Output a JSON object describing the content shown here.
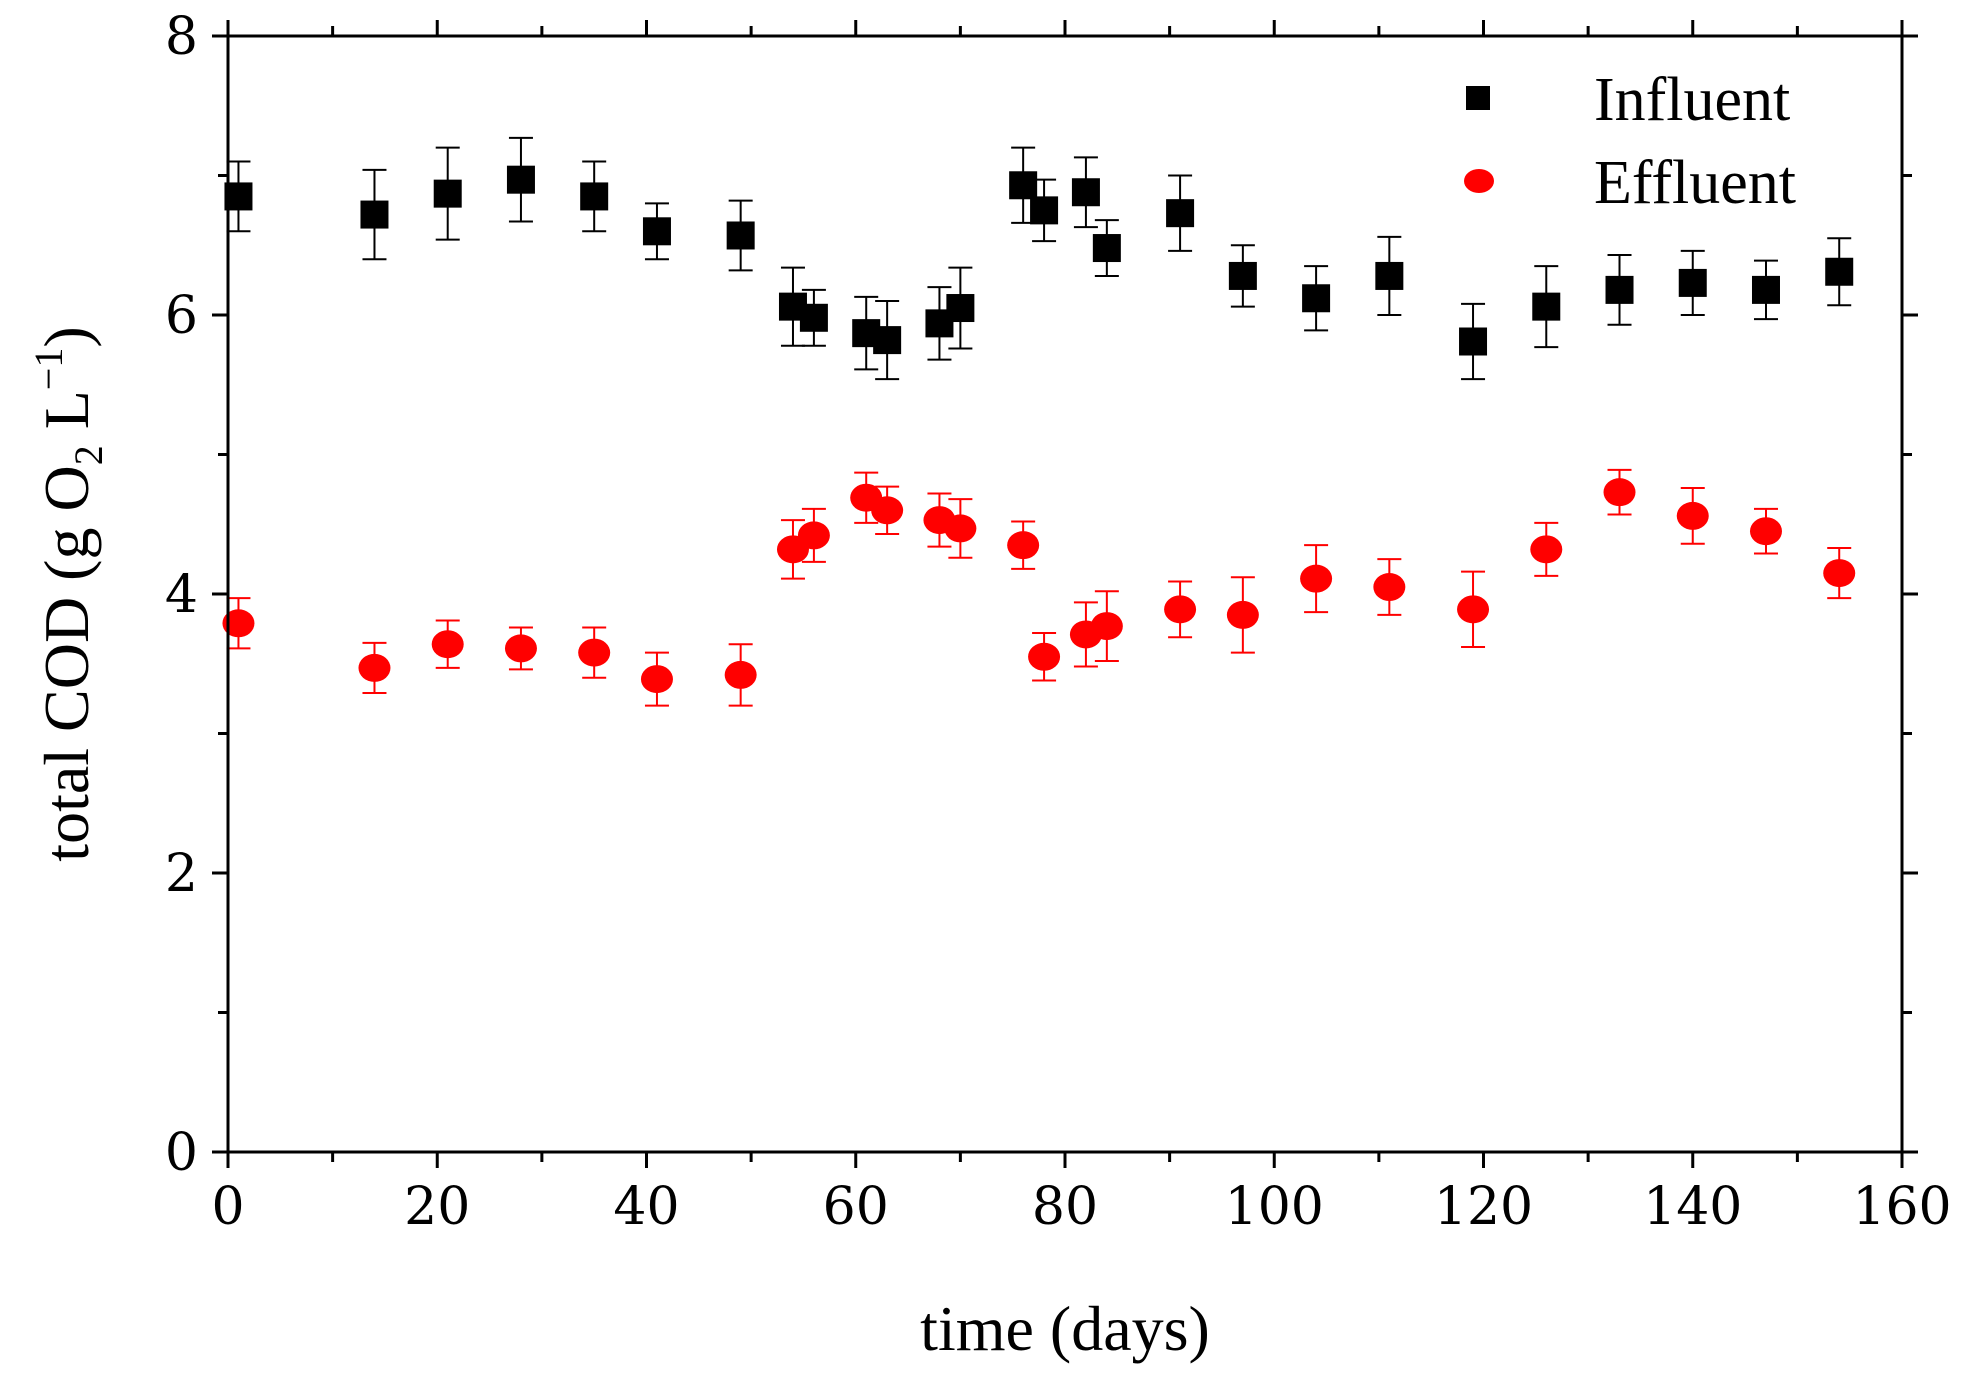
{
  "chart_data": {
    "type": "scatter",
    "title": "",
    "xlabel": "time (days)",
    "ylabel_parts": [
      "total COD (g O",
      "2",
      " L",
      "−1",
      ")"
    ],
    "xlim": [
      0,
      160
    ],
    "ylim": [
      0,
      8
    ],
    "xticks": [
      0,
      20,
      40,
      60,
      80,
      100,
      120,
      140,
      160
    ],
    "yticks": [
      0,
      2,
      4,
      6,
      8
    ],
    "x_minor_step": 10,
    "y_minor_step": 1,
    "grid": false,
    "legend_position": "top-right",
    "series": [
      {
        "name": "Influent",
        "marker": "square",
        "color": "#000000",
        "points": [
          {
            "x": 1,
            "y": 6.85,
            "err": 0.25
          },
          {
            "x": 14,
            "y": 6.72,
            "err": 0.32
          },
          {
            "x": 21,
            "y": 6.87,
            "err": 0.33
          },
          {
            "x": 28,
            "y": 6.97,
            "err": 0.3
          },
          {
            "x": 35,
            "y": 6.85,
            "err": 0.25
          },
          {
            "x": 41,
            "y": 6.6,
            "err": 0.2
          },
          {
            "x": 49,
            "y": 6.57,
            "err": 0.25
          },
          {
            "x": 54,
            "y": 6.06,
            "err": 0.28
          },
          {
            "x": 56,
            "y": 5.98,
            "err": 0.2
          },
          {
            "x": 61,
            "y": 5.87,
            "err": 0.26
          },
          {
            "x": 63,
            "y": 5.82,
            "err": 0.28
          },
          {
            "x": 68,
            "y": 5.94,
            "err": 0.26
          },
          {
            "x": 70,
            "y": 6.05,
            "err": 0.29
          },
          {
            "x": 76,
            "y": 6.93,
            "err": 0.27
          },
          {
            "x": 78,
            "y": 6.75,
            "err": 0.22
          },
          {
            "x": 82,
            "y": 6.88,
            "err": 0.25
          },
          {
            "x": 84,
            "y": 6.48,
            "err": 0.2
          },
          {
            "x": 91,
            "y": 6.73,
            "err": 0.27
          },
          {
            "x": 97,
            "y": 6.28,
            "err": 0.22
          },
          {
            "x": 104,
            "y": 6.12,
            "err": 0.23
          },
          {
            "x": 111,
            "y": 6.28,
            "err": 0.28
          },
          {
            "x": 119,
            "y": 5.81,
            "err": 0.27
          },
          {
            "x": 126,
            "y": 6.06,
            "err": 0.29
          },
          {
            "x": 133,
            "y": 6.18,
            "err": 0.25
          },
          {
            "x": 140,
            "y": 6.23,
            "err": 0.23
          },
          {
            "x": 147,
            "y": 6.18,
            "err": 0.21
          },
          {
            "x": 154,
            "y": 6.31,
            "err": 0.24
          }
        ]
      },
      {
        "name": "Effluent",
        "marker": "circle",
        "color": "#ff0000",
        "points": [
          {
            "x": 1,
            "y": 3.79,
            "err": 0.18
          },
          {
            "x": 14,
            "y": 3.47,
            "err": 0.18
          },
          {
            "x": 21,
            "y": 3.64,
            "err": 0.17
          },
          {
            "x": 28,
            "y": 3.61,
            "err": 0.15
          },
          {
            "x": 35,
            "y": 3.58,
            "err": 0.18
          },
          {
            "x": 41,
            "y": 3.39,
            "err": 0.19
          },
          {
            "x": 49,
            "y": 3.42,
            "err": 0.22
          },
          {
            "x": 54,
            "y": 4.32,
            "err": 0.21
          },
          {
            "x": 56,
            "y": 4.42,
            "err": 0.19
          },
          {
            "x": 61,
            "y": 4.69,
            "err": 0.18
          },
          {
            "x": 63,
            "y": 4.6,
            "err": 0.17
          },
          {
            "x": 68,
            "y": 4.53,
            "err": 0.19
          },
          {
            "x": 70,
            "y": 4.47,
            "err": 0.21
          },
          {
            "x": 76,
            "y": 4.35,
            "err": 0.17
          },
          {
            "x": 78,
            "y": 3.55,
            "err": 0.17
          },
          {
            "x": 82,
            "y": 3.71,
            "err": 0.23
          },
          {
            "x": 84,
            "y": 3.77,
            "err": 0.25
          },
          {
            "x": 91,
            "y": 3.89,
            "err": 0.2
          },
          {
            "x": 97,
            "y": 3.85,
            "err": 0.27
          },
          {
            "x": 104,
            "y": 4.11,
            "err": 0.24
          },
          {
            "x": 111,
            "y": 4.05,
            "err": 0.2
          },
          {
            "x": 119,
            "y": 3.89,
            "err": 0.27
          },
          {
            "x": 126,
            "y": 4.32,
            "err": 0.19
          },
          {
            "x": 133,
            "y": 4.73,
            "err": 0.16
          },
          {
            "x": 140,
            "y": 4.56,
            "err": 0.2
          },
          {
            "x": 147,
            "y": 4.45,
            "err": 0.16
          },
          {
            "x": 154,
            "y": 4.15,
            "err": 0.18
          }
        ]
      }
    ]
  }
}
